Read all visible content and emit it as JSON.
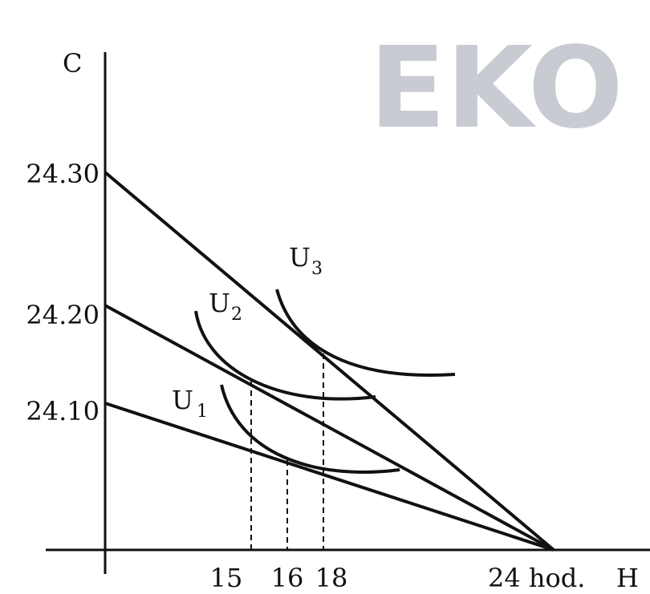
{
  "watermark": {
    "text": "EKO",
    "color": "#c8ccd2"
  },
  "axes": {
    "y_label": "C",
    "x_label": "H",
    "x_unit_label": "24 hod.",
    "y_ticks": [
      "24.30",
      "24.20",
      "24.10"
    ],
    "x_ticks": [
      "15",
      "16",
      "18"
    ]
  },
  "curves": {
    "u1": {
      "letter": "U",
      "subscript": "1"
    },
    "u2": {
      "letter": "U",
      "subscript": "2"
    },
    "u3": {
      "letter": "U",
      "subscript": "3"
    }
  },
  "colors": {
    "line": "#111111",
    "background": "#ffffff"
  }
}
